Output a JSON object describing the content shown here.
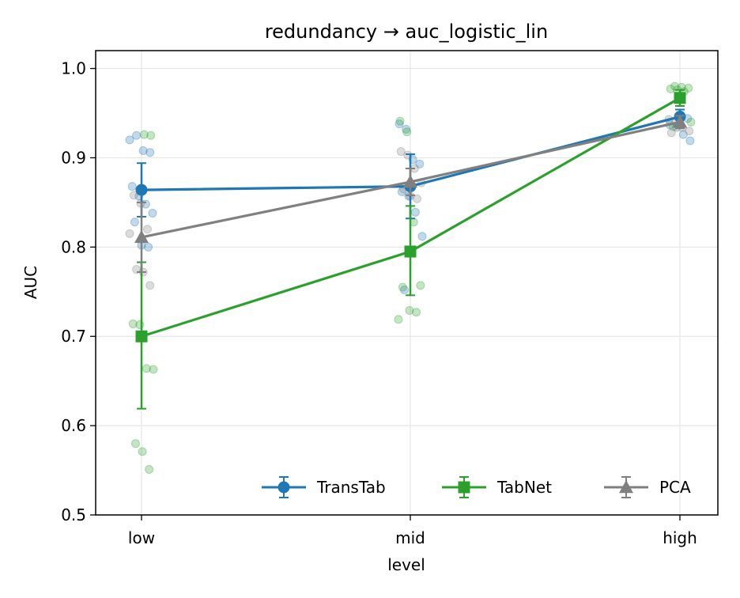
{
  "chart_data": {
    "type": "line",
    "title": "redundancy → auc_logistic_lin",
    "xlabel": "level",
    "ylabel": "AUC",
    "categories": [
      "low",
      "mid",
      "high"
    ],
    "ylim": [
      0.5,
      1.02
    ],
    "yticks": [
      0.5,
      0.6,
      0.7,
      0.8,
      0.9,
      1.0
    ],
    "ytick_labels": [
      "0.5",
      "0.6",
      "0.7",
      "0.8",
      "0.9",
      "1.0"
    ],
    "grid": true,
    "legend_position": "lower-right",
    "series": [
      {
        "name": "TransTab",
        "color": "#1f77b4",
        "marker": "circle",
        "values": [
          0.864,
          0.868,
          0.946
        ],
        "err_low": [
          0.834,
          0.832,
          0.938
        ],
        "err_high": [
          0.894,
          0.904,
          0.954
        ],
        "points": [
          [
            0,
            0.92
          ],
          [
            0,
            0.925
          ],
          [
            0,
            0.908
          ],
          [
            0,
            0.906
          ],
          [
            0,
            0.868
          ],
          [
            0,
            0.857
          ],
          [
            0,
            0.848
          ],
          [
            0,
            0.838
          ],
          [
            0,
            0.828
          ],
          [
            0,
            0.802
          ],
          [
            0,
            0.8
          ],
          [
            1,
            0.938
          ],
          [
            1,
            0.932
          ],
          [
            1,
            0.898
          ],
          [
            1,
            0.893
          ],
          [
            1,
            0.862
          ],
          [
            1,
            0.857
          ],
          [
            1,
            0.839
          ],
          [
            1,
            0.812
          ],
          [
            1,
            0.752
          ],
          [
            2,
            0.948
          ],
          [
            2,
            0.944
          ],
          [
            2,
            0.937
          ],
          [
            2,
            0.934
          ],
          [
            2,
            0.926
          ],
          [
            2,
            0.919
          ]
        ]
      },
      {
        "name": "TabNet",
        "color": "#2ca02c",
        "marker": "square",
        "values": [
          0.7,
          0.795,
          0.967
        ],
        "err_low": [
          0.619,
          0.746,
          0.958
        ],
        "err_high": [
          0.783,
          0.846,
          0.976
        ],
        "points": [
          [
            0,
            0.926
          ],
          [
            0,
            0.925
          ],
          [
            0,
            0.714
          ],
          [
            0,
            0.713
          ],
          [
            0,
            0.664
          ],
          [
            0,
            0.663
          ],
          [
            0,
            0.58
          ],
          [
            0,
            0.571
          ],
          [
            0,
            0.551
          ],
          [
            1,
            0.941
          ],
          [
            1,
            0.929
          ],
          [
            1,
            0.828
          ],
          [
            1,
            0.757
          ],
          [
            1,
            0.755
          ],
          [
            1,
            0.729
          ],
          [
            1,
            0.727
          ],
          [
            1,
            0.719
          ],
          [
            2,
            0.98
          ],
          [
            2,
            0.979
          ],
          [
            2,
            0.978
          ],
          [
            2,
            0.977
          ],
          [
            2,
            0.976
          ],
          [
            2,
            0.974
          ],
          [
            2,
            0.94
          ],
          [
            2,
            0.935
          ]
        ]
      },
      {
        "name": "PCA",
        "color": "#808080",
        "marker": "triangle",
        "values": [
          0.811,
          0.873,
          0.94
        ],
        "err_low": [
          0.772,
          0.858,
          0.933
        ],
        "err_high": [
          0.85,
          0.888,
          0.947
        ],
        "points": [
          [
            0,
            0.858
          ],
          [
            0,
            0.849
          ],
          [
            0,
            0.82
          ],
          [
            0,
            0.815
          ],
          [
            0,
            0.775
          ],
          [
            0,
            0.772
          ],
          [
            0,
            0.757
          ],
          [
            1,
            0.907
          ],
          [
            1,
            0.903
          ],
          [
            1,
            0.888
          ],
          [
            1,
            0.872
          ],
          [
            1,
            0.865
          ],
          [
            1,
            0.857
          ],
          [
            1,
            0.854
          ],
          [
            2,
            0.943
          ],
          [
            2,
            0.94
          ],
          [
            2,
            0.934
          ],
          [
            2,
            0.93
          ],
          [
            2,
            0.928
          ]
        ]
      }
    ]
  }
}
